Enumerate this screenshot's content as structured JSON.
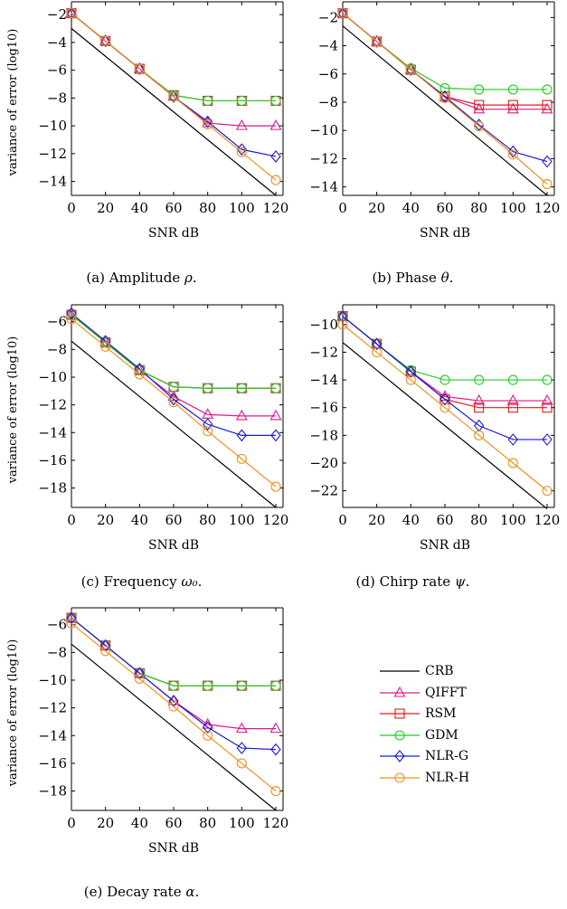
{
  "figure": {
    "legend": [
      {
        "name": "CRB",
        "color": "#000000",
        "marker": "none"
      },
      {
        "name": "QIFFT",
        "color": "#e0168d",
        "marker": "triangle"
      },
      {
        "name": "RSM",
        "color": "#e01c1c",
        "marker": "square"
      },
      {
        "name": "GDM",
        "color": "#22cc22",
        "marker": "circle"
      },
      {
        "name": "NLR-G",
        "color": "#1a1ad6",
        "marker": "diamond"
      },
      {
        "name": "NLR-H",
        "color": "#f0901e",
        "marker": "circle"
      }
    ]
  },
  "chart_data": [
    {
      "type": "line",
      "caption_prefix": "(a) Amplitude ",
      "caption_symbol": "ρ",
      "caption_suffix": ".",
      "xlabel": "SNR dB",
      "ylabel": "variance of error (log10)",
      "x": [
        0,
        20,
        40,
        60,
        80,
        100,
        120
      ],
      "xticks": [
        "0",
        "20",
        "40",
        "60",
        "80",
        "100",
        "120"
      ],
      "yticks": [
        -2,
        -4,
        -6,
        -8,
        -10,
        -12,
        -14
      ],
      "ytick_labels": [
        "−2",
        "−4",
        "−6",
        "−8",
        "−10",
        "−12",
        "−14"
      ],
      "xlim": [
        0,
        120
      ],
      "ylim": [
        -15,
        -1.6
      ],
      "series": [
        {
          "name": "CRB",
          "values": [
            -3,
            -5,
            -7,
            -9,
            -11,
            -13,
            -15
          ]
        },
        {
          "name": "QIFFT",
          "values": [
            -1.9,
            -3.9,
            -5.9,
            -7.9,
            -9.8,
            -10.0,
            -10.0
          ]
        },
        {
          "name": "RSM",
          "values": [
            -1.9,
            -3.9,
            -5.9,
            -7.8,
            -8.2,
            -8.2,
            -8.2
          ]
        },
        {
          "name": "GDM",
          "values": [
            -1.9,
            -3.9,
            -5.9,
            -7.8,
            -8.2,
            -8.2,
            -8.2
          ]
        },
        {
          "name": "NLR-G",
          "values": [
            -1.9,
            -3.9,
            -5.9,
            -7.9,
            -9.7,
            -11.7,
            -12.2
          ]
        },
        {
          "name": "NLR-H",
          "values": [
            -1.9,
            -3.9,
            -5.9,
            -7.9,
            -9.9,
            -11.9,
            -13.9
          ]
        }
      ]
    },
    {
      "type": "line",
      "caption_prefix": "(b) Phase ",
      "caption_symbol": "θ",
      "caption_suffix": ".",
      "xlabel": "SNR dB",
      "ylabel": "",
      "x": [
        0,
        20,
        40,
        60,
        80,
        100,
        120
      ],
      "xticks": [
        "0",
        "20",
        "40",
        "60",
        "80",
        "100",
        "120"
      ],
      "yticks": [
        -2,
        -4,
        -6,
        -8,
        -10,
        -12,
        -14
      ],
      "ytick_labels": [
        "−2",
        "−4",
        "−6",
        "−8",
        "−10",
        "−12",
        "−14"
      ],
      "xlim": [
        0,
        120
      ],
      "ylim": [
        -14.6,
        -1.4
      ],
      "series": [
        {
          "name": "CRB",
          "values": [
            -2.6,
            -4.6,
            -6.6,
            -8.6,
            -10.6,
            -12.6,
            -14.6
          ]
        },
        {
          "name": "QIFFT",
          "values": [
            -1.7,
            -3.7,
            -5.7,
            -7.6,
            -8.5,
            -8.5,
            -8.5
          ]
        },
        {
          "name": "RSM",
          "values": [
            -1.7,
            -3.7,
            -5.7,
            -7.6,
            -8.2,
            -8.2,
            -8.2
          ]
        },
        {
          "name": "GDM",
          "values": [
            -1.7,
            -3.7,
            -5.6,
            -7.0,
            -7.1,
            -7.1,
            -7.1
          ]
        },
        {
          "name": "NLR-G",
          "values": [
            -1.7,
            -3.7,
            -5.7,
            -7.6,
            -9.6,
            -11.5,
            -12.2
          ]
        },
        {
          "name": "NLR-H",
          "values": [
            -1.7,
            -3.7,
            -5.7,
            -7.7,
            -9.7,
            -11.7,
            -13.8
          ]
        }
      ]
    },
    {
      "type": "line",
      "caption_prefix": "(c) Frequency ",
      "caption_symbol": "ω₀",
      "caption_suffix": ".",
      "xlabel": "SNR dB",
      "ylabel": "variance of error (log10)",
      "x": [
        0,
        20,
        40,
        60,
        80,
        100,
        120
      ],
      "xticks": [
        "0",
        "20",
        "40",
        "60",
        "80",
        "100",
        "120"
      ],
      "yticks": [
        -6,
        -8,
        -10,
        -12,
        -14,
        -16,
        -18
      ],
      "ytick_labels": [
        "−6",
        "−8",
        "−10",
        "−12",
        "−14",
        "−16",
        "−18"
      ],
      "xlim": [
        0,
        120
      ],
      "ylim": [
        -19.4,
        -5.3
      ],
      "series": [
        {
          "name": "CRB",
          "values": [
            -7.4,
            -9.4,
            -11.4,
            -13.4,
            -15.4,
            -17.4,
            -19.4
          ]
        },
        {
          "name": "QIFFT",
          "values": [
            -5.5,
            -7.5,
            -9.5,
            -11.4,
            -12.7,
            -12.8,
            -12.8
          ]
        },
        {
          "name": "RSM",
          "values": [
            -5.5,
            -7.5,
            -9.5,
            -10.7,
            -10.8,
            -10.8,
            -10.8
          ]
        },
        {
          "name": "GDM",
          "values": [
            -5.5,
            -7.5,
            -9.5,
            -10.7,
            -10.8,
            -10.8,
            -10.8
          ]
        },
        {
          "name": "NLR-G",
          "values": [
            -5.4,
            -7.4,
            -9.4,
            -11.6,
            -13.4,
            -14.2,
            -14.2
          ]
        },
        {
          "name": "NLR-H",
          "values": [
            -5.8,
            -7.8,
            -9.8,
            -11.8,
            -13.9,
            -15.9,
            -17.9
          ]
        }
      ]
    },
    {
      "type": "line",
      "caption_prefix": "(d) Chirp rate ",
      "caption_symbol": "ψ",
      "caption_suffix": ".",
      "xlabel": "SNR dB",
      "ylabel": "",
      "x": [
        0,
        20,
        40,
        60,
        80,
        100,
        120
      ],
      "xticks": [
        "0",
        "20",
        "40",
        "60",
        "80",
        "100",
        "120"
      ],
      "yticks": [
        -10,
        -12,
        -14,
        -16,
        -18,
        -20,
        -22
      ],
      "ytick_labels": [
        "−10",
        "−12",
        "−14",
        "−16",
        "−18",
        "−20",
        "−22"
      ],
      "xlim": [
        0,
        120
      ],
      "ylim": [
        -23.2,
        -9.1
      ],
      "series": [
        {
          "name": "CRB",
          "values": [
            -11.3,
            -13.3,
            -15.3,
            -17.3,
            -19.3,
            -21.3,
            -23.3
          ]
        },
        {
          "name": "QIFFT",
          "values": [
            -9.4,
            -11.4,
            -13.4,
            -15.2,
            -15.5,
            -15.5,
            -15.5
          ]
        },
        {
          "name": "RSM",
          "values": [
            -9.4,
            -11.4,
            -13.4,
            -15.4,
            -16.0,
            -16.0,
            -16.0
          ]
        },
        {
          "name": "GDM",
          "values": [
            -9.4,
            -11.4,
            -13.3,
            -14.0,
            -14.0,
            -14.0,
            -14.0
          ]
        },
        {
          "name": "NLR-G",
          "values": [
            -9.4,
            -11.4,
            -13.4,
            -15.4,
            -17.3,
            -18.3,
            -18.3
          ]
        },
        {
          "name": "NLR-H",
          "values": [
            -10.0,
            -12.0,
            -14.0,
            -16.0,
            -18.0,
            -20.0,
            -22.0
          ]
        }
      ]
    },
    {
      "type": "line",
      "caption_prefix": "(e) Decay rate ",
      "caption_symbol": "α",
      "caption_suffix": ".",
      "xlabel": "SNR dB",
      "ylabel": "variance of error (log10)",
      "x": [
        0,
        20,
        40,
        60,
        80,
        100,
        120
      ],
      "xticks": [
        "0",
        "20",
        "40",
        "60",
        "80",
        "100",
        "120"
      ],
      "yticks": [
        -6,
        -8,
        -10,
        -12,
        -14,
        -16,
        -18
      ],
      "ytick_labels": [
        "−6",
        "−8",
        "−10",
        "−12",
        "−14",
        "−16",
        "−18"
      ],
      "xlim": [
        0,
        120
      ],
      "ylim": [
        -19.4,
        -5.3
      ],
      "series": [
        {
          "name": "CRB",
          "values": [
            -7.4,
            -9.4,
            -11.4,
            -13.4,
            -15.4,
            -17.4,
            -19.4
          ]
        },
        {
          "name": "QIFFT",
          "values": [
            -5.5,
            -7.5,
            -9.5,
            -11.5,
            -13.2,
            -13.5,
            -13.5
          ]
        },
        {
          "name": "RSM",
          "values": [
            -5.5,
            -7.5,
            -9.5,
            -10.4,
            -10.4,
            -10.4,
            -10.4
          ]
        },
        {
          "name": "GDM",
          "values": [
            -5.5,
            -7.5,
            -9.5,
            -10.4,
            -10.4,
            -10.4,
            -10.4
          ]
        },
        {
          "name": "NLR-G",
          "values": [
            -5.5,
            -7.5,
            -9.5,
            -11.5,
            -13.4,
            -14.9,
            -15.0
          ]
        },
        {
          "name": "NLR-H",
          "values": [
            -5.9,
            -7.9,
            -9.9,
            -11.9,
            -14.0,
            -16.0,
            -18.0
          ]
        }
      ]
    }
  ]
}
